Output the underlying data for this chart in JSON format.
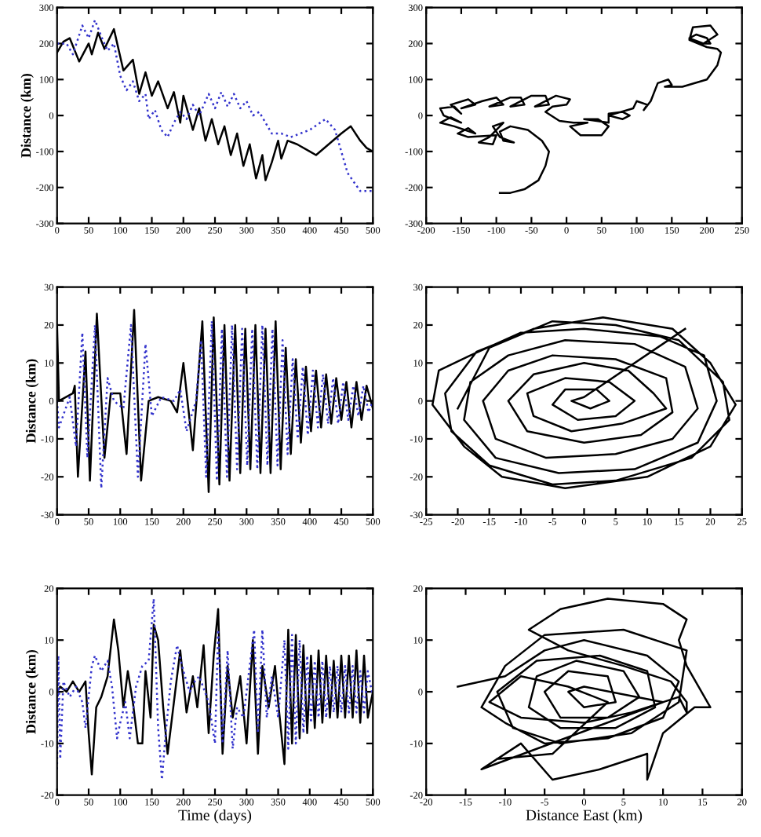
{
  "chart_data": [
    {
      "type": "line",
      "ylabel": "Distance (km)",
      "xlim": [
        0,
        500
      ],
      "ylim": [
        -300,
        300
      ],
      "xticks": [
        0,
        50,
        100,
        150,
        200,
        250,
        300,
        350,
        400,
        450,
        500
      ],
      "yticks": [
        -300,
        -200,
        -100,
        0,
        100,
        200,
        300
      ],
      "grid": false,
      "series": [
        {
          "color": "#000000",
          "line_style": "solid",
          "x": [
            0,
            10,
            20,
            35,
            50,
            55,
            65,
            75,
            90,
            105,
            120,
            130,
            140,
            150,
            160,
            175,
            185,
            195,
            200,
            215,
            225,
            235,
            245,
            255,
            265,
            275,
            285,
            295,
            305,
            315,
            325,
            330,
            340,
            350,
            355,
            365,
            380,
            400,
            410,
            430,
            450,
            465,
            480,
            490,
            500
          ],
          "values": [
            175,
            205,
            215,
            150,
            200,
            170,
            230,
            185,
            240,
            125,
            155,
            60,
            120,
            55,
            95,
            20,
            65,
            -20,
            55,
            -40,
            20,
            -70,
            -10,
            -80,
            -30,
            -110,
            -50,
            -140,
            -80,
            -175,
            -110,
            -180,
            -130,
            -70,
            -120,
            -70,
            -80,
            -100,
            -110,
            -80,
            -50,
            -30,
            -70,
            -90,
            -100
          ]
        },
        {
          "color": "#3333cc",
          "line_style": "dotted",
          "x": [
            0,
            15,
            25,
            40,
            50,
            60,
            70,
            80,
            90,
            100,
            110,
            120,
            130,
            140,
            145,
            155,
            165,
            175,
            185,
            195,
            205,
            215,
            225,
            240,
            250,
            260,
            270,
            280,
            290,
            300,
            310,
            320,
            340,
            355,
            370,
            385,
            400,
            425,
            440,
            450,
            460,
            480,
            500
          ],
          "values": [
            200,
            200,
            170,
            250,
            215,
            265,
            220,
            180,
            200,
            110,
            70,
            95,
            40,
            60,
            -10,
            15,
            -40,
            -60,
            -20,
            10,
            -10,
            30,
            0,
            60,
            20,
            65,
            25,
            60,
            20,
            40,
            0,
            10,
            -50,
            -50,
            -60,
            -50,
            -40,
            -10,
            -40,
            -100,
            -160,
            -210,
            -210
          ]
        }
      ]
    },
    {
      "type": "line",
      "xlim": [
        -200,
        250
      ],
      "ylim": [
        -300,
        300
      ],
      "xticks": [
        -200,
        -150,
        -100,
        -50,
        0,
        50,
        100,
        150,
        200,
        250
      ],
      "yticks": [
        -300,
        -200,
        -100,
        0,
        100,
        200,
        300
      ],
      "grid": false,
      "series": [
        {
          "color": "#000000",
          "line_style": "solid",
          "x": [
            -95,
            -80,
            -60,
            -40,
            -30,
            -25,
            -35,
            -55,
            -80,
            -95,
            -90,
            -75,
            -95,
            -105,
            -90,
            -110,
            -125,
            -105,
            -100,
            -140,
            -155,
            -140,
            -130,
            -160,
            -180,
            -165,
            -150,
            -175,
            -180,
            -160,
            -150,
            -165,
            -140,
            -130,
            -150,
            -120,
            -100,
            -90,
            -110,
            -80,
            -65,
            -60,
            -80,
            -50,
            -30,
            -25,
            -45,
            -15,
            5,
            0,
            -20,
            -30,
            -10,
            10,
            30,
            5,
            20,
            50,
            60,
            45,
            25,
            60,
            60,
            80,
            90,
            80,
            60,
            95,
            100,
            115,
            110,
            120,
            130,
            145,
            150,
            140,
            165,
            200,
            215,
            220,
            215,
            200,
            175,
            180,
            205,
            215,
            195,
            175,
            185,
            200,
            205,
            190
          ],
          "values": [
            -215,
            -215,
            -205,
            -180,
            -140,
            -100,
            -70,
            -40,
            -30,
            -45,
            -70,
            -75,
            -60,
            -30,
            -20,
            -60,
            -75,
            -80,
            -55,
            -60,
            -50,
            -35,
            -50,
            -30,
            -20,
            -5,
            -20,
            0,
            20,
            25,
            5,
            30,
            45,
            30,
            20,
            40,
            50,
            30,
            25,
            50,
            50,
            30,
            25,
            55,
            55,
            30,
            25,
            55,
            45,
            30,
            25,
            10,
            -15,
            -20,
            -20,
            -30,
            -55,
            -55,
            -30,
            -10,
            -10,
            -20,
            5,
            10,
            0,
            -10,
            0,
            20,
            40,
            30,
            15,
            40,
            90,
            100,
            85,
            80,
            80,
            100,
            140,
            175,
            185,
            190,
            210,
            245,
            250,
            225,
            200,
            215,
            225,
            215,
            200,
            200
          ]
        }
      ]
    },
    {
      "type": "line",
      "ylabel": "Distance (km)",
      "xlim": [
        0,
        500
      ],
      "ylim": [
        -30,
        30
      ],
      "xticks": [
        0,
        50,
        100,
        150,
        200,
        250,
        300,
        350,
        400,
        450,
        500
      ],
      "yticks": [
        -30,
        -20,
        -10,
        0,
        10,
        20,
        30
      ],
      "grid": false,
      "series": [
        {
          "color": "#000000",
          "line_style": "solid",
          "x": [
            0,
            3,
            25,
            28,
            33,
            45,
            52,
            63,
            75,
            85,
            100,
            110,
            122,
            133,
            145,
            160,
            180,
            190,
            200,
            215,
            230,
            240,
            248,
            257,
            265,
            273,
            282,
            290,
            298,
            306,
            314,
            322,
            330,
            338,
            346,
            354,
            362,
            370,
            378,
            386,
            394,
            402,
            410,
            418,
            426,
            434,
            442,
            450,
            458,
            466,
            474,
            482,
            490,
            500
          ],
          "values": [
            20,
            0,
            2,
            4,
            -20,
            13,
            -21,
            23,
            -15,
            2,
            2,
            -14,
            24,
            -21,
            0,
            1,
            0,
            -3,
            10,
            -13,
            21,
            -24,
            22,
            -22,
            20,
            -21,
            20,
            -19,
            19,
            -18,
            20,
            -19,
            19,
            -19,
            21,
            -18,
            14,
            -14,
            11,
            -11,
            9,
            -8,
            8,
            -7,
            7,
            -6,
            6,
            -5,
            5,
            -7,
            5,
            -5,
            4,
            -2
          ]
        },
        {
          "color": "#3333cc",
          "line_style": "dotted",
          "x": [
            0,
            3,
            20,
            30,
            40,
            48,
            60,
            70,
            80,
            90,
            105,
            117,
            128,
            140,
            150,
            165,
            185,
            195,
            205,
            220,
            228,
            236,
            245,
            253,
            261,
            269,
            277,
            285,
            293,
            301,
            309,
            317,
            325,
            333,
            341,
            349,
            357,
            365,
            373,
            381,
            389,
            397,
            405,
            413,
            421,
            429,
            437,
            445,
            453,
            461,
            469,
            477,
            485,
            493,
            500
          ],
          "values": [
            0,
            -7,
            1,
            -12,
            18,
            -15,
            20,
            -23,
            6,
            0,
            -2,
            20,
            -20,
            15,
            -4,
            1,
            0,
            3,
            -8,
            0,
            16,
            -20,
            21,
            -21,
            19,
            -20,
            20,
            -18,
            19,
            -17,
            19,
            -18,
            20,
            -17,
            19,
            -17,
            16,
            -14,
            11,
            -10,
            9,
            -9,
            8,
            -7,
            7,
            -6,
            6,
            -6,
            5,
            -5,
            4,
            -4,
            4,
            -3,
            0
          ]
        }
      ]
    },
    {
      "type": "line",
      "xlim": [
        -25,
        25
      ],
      "ylim": [
        -30,
        30
      ],
      "xticks": [
        -25,
        -20,
        -15,
        -10,
        -5,
        0,
        5,
        10,
        15,
        20,
        25
      ],
      "yticks": [
        -30,
        -20,
        -10,
        0,
        10,
        20,
        30
      ],
      "grid": false,
      "series": [
        {
          "color": "#000000",
          "line_style": "solid",
          "x": [
            -20,
            -15,
            -5,
            5,
            15,
            22,
            23,
            17,
            5,
            -5,
            -15,
            -21,
            -22,
            -17,
            -8,
            3,
            14,
            20,
            24,
            20,
            10,
            -3,
            -13,
            -19,
            -24,
            -23,
            -18,
            -10,
            0,
            12,
            19,
            21,
            18,
            8,
            -4,
            -14,
            -19,
            -18,
            -12,
            -3,
            8,
            16,
            18,
            14,
            5,
            -6,
            -14,
            -16,
            -12,
            -5,
            5,
            13,
            14,
            9,
            0,
            -9,
            -12,
            -8,
            0,
            7,
            11,
            13,
            6,
            -2,
            -8,
            -9,
            -3,
            4,
            8,
            5,
            -1,
            -5,
            -3,
            2,
            4,
            1,
            -2,
            0,
            16
          ],
          "values": [
            -2,
            14,
            21,
            20,
            16,
            5,
            -5,
            -15,
            -21,
            -22,
            -17,
            -8,
            2,
            13,
            19,
            22,
            19,
            10,
            -1,
            -12,
            -20,
            -23,
            -20,
            -12,
            -1,
            8,
            12,
            18,
            19,
            17,
            12,
            0,
            -11,
            -18,
            -19,
            -15,
            -5,
            5,
            12,
            16,
            15,
            9,
            -2,
            -10,
            -14,
            -15,
            -10,
            0,
            8,
            12,
            11,
            6,
            -3,
            -9,
            -11,
            -8,
            0,
            7,
            10,
            8,
            2,
            -2,
            -6,
            -8,
            -4,
            2,
            6,
            5,
            0,
            -4,
            -5,
            -1,
            3,
            3,
            0,
            -2,
            0,
            1,
            19
          ]
        }
      ]
    },
    {
      "type": "line",
      "ylabel": "Distance (km)",
      "xlabel": "Time (days)",
      "xlim": [
        0,
        500
      ],
      "ylim": [
        -20,
        20
      ],
      "xticks": [
        0,
        50,
        100,
        150,
        200,
        250,
        300,
        350,
        400,
        450,
        500
      ],
      "yticks": [
        -20,
        -10,
        0,
        10,
        20
      ],
      "grid": false,
      "series": [
        {
          "color": "#000000",
          "line_style": "solid",
          "x": [
            0,
            5,
            15,
            25,
            35,
            45,
            50,
            55,
            62,
            70,
            80,
            90,
            97,
            105,
            112,
            120,
            128,
            135,
            140,
            148,
            153,
            160,
            168,
            175,
            185,
            195,
            205,
            215,
            222,
            232,
            240,
            248,
            255,
            262,
            270,
            278,
            290,
            300,
            310,
            318,
            325,
            335,
            345,
            350,
            360,
            366,
            372,
            378,
            384,
            390,
            396,
            402,
            408,
            414,
            420,
            426,
            432,
            438,
            444,
            450,
            456,
            462,
            468,
            474,
            480,
            486,
            492,
            500
          ],
          "values": [
            0,
            1,
            0,
            2,
            0,
            2,
            -8,
            -16,
            -3,
            -1,
            3,
            14,
            8,
            -3,
            4,
            -2,
            -10,
            -10,
            4,
            -5,
            13,
            10,
            -3,
            -12,
            -2,
            8,
            -4,
            3,
            -3,
            9,
            -8,
            7,
            16,
            -12,
            5,
            -5,
            3,
            -10,
            10,
            -12,
            5,
            -3,
            5,
            -2,
            -14,
            12,
            -10,
            11,
            -9,
            9,
            -8,
            7,
            -7,
            8,
            -6,
            7,
            -5,
            6,
            -5,
            7,
            -5,
            7,
            -5,
            8,
            -6,
            7,
            -5,
            0
          ]
        },
        {
          "color": "#3333cc",
          "line_style": "dotted",
          "x": [
            0,
            2,
            5,
            10,
            20,
            30,
            40,
            45,
            55,
            60,
            70,
            80,
            87,
            95,
            100,
            108,
            115,
            125,
            135,
            145,
            153,
            160,
            166,
            172,
            180,
            190,
            200,
            210,
            218,
            225,
            240,
            250,
            255,
            262,
            270,
            278,
            285,
            295,
            305,
            312,
            318,
            325,
            332,
            340,
            350,
            360,
            366,
            372,
            378,
            384,
            390,
            396,
            402,
            408,
            414,
            420,
            426,
            432,
            438,
            444,
            450,
            456,
            462,
            468,
            474,
            480,
            486,
            492,
            500
          ],
          "values": [
            -15,
            7,
            -13,
            2,
            -1,
            1,
            -2,
            -7,
            5,
            7,
            4,
            6,
            1,
            -9,
            -6,
            -2,
            -9,
            1,
            5,
            6,
            18,
            -7,
            -17,
            -8,
            2,
            9,
            4,
            0,
            2,
            3,
            -2,
            -10,
            12,
            -10,
            8,
            -11,
            -3,
            -5,
            5,
            12,
            -8,
            12,
            -5,
            3,
            -5,
            10,
            -11,
            11,
            -10,
            10,
            -8,
            7,
            -6,
            6,
            -5,
            6,
            -5,
            5,
            -4,
            5,
            -4,
            5,
            -4,
            5,
            -4,
            4,
            -4,
            4,
            -1
          ]
        }
      ]
    },
    {
      "type": "line",
      "xlabel": "Distance East (km)",
      "xlim": [
        -20,
        20
      ],
      "ylim": [
        -20,
        20
      ],
      "xticks": [
        -20,
        -15,
        -10,
        -5,
        0,
        5,
        10,
        15,
        20
      ],
      "yticks": [
        -20,
        -10,
        0,
        10,
        20
      ],
      "grid": false,
      "series": [
        {
          "color": "#000000",
          "line_style": "solid",
          "x": [
            -16,
            -10,
            -5,
            0,
            8,
            12,
            10,
            3,
            -5,
            -10,
            -13,
            -10,
            -5,
            5,
            13,
            12,
            6,
            -3,
            -9,
            -11,
            -6,
            2,
            8,
            9,
            4,
            -3,
            -7,
            -6,
            -1,
            5,
            7,
            3,
            -3,
            -5,
            -2,
            3,
            4,
            0,
            -2,
            0,
            10,
            -13,
            -8,
            -4,
            2,
            8,
            8,
            10,
            14,
            16,
            13,
            12,
            13,
            10,
            3,
            -3,
            -7,
            -2,
            5,
            11,
            13,
            13,
            12,
            6,
            0,
            -8,
            -12,
            -8,
            -2,
            3,
            -4,
            -11
          ],
          "values": [
            1,
            3,
            8,
            10,
            7,
            2,
            -5,
            -9,
            -10,
            -6,
            -3,
            5,
            11,
            12,
            8,
            -2,
            -8,
            -10,
            -7,
            0,
            6,
            7,
            4,
            -3,
            -7,
            -7,
            -3,
            3,
            6,
            4,
            -1,
            -5,
            -5,
            0,
            4,
            3,
            -2,
            -3,
            0,
            1,
            -2,
            -15,
            -10,
            -17,
            -15,
            -12,
            -17,
            -8,
            -3,
            -3,
            5,
            10,
            14,
            17,
            18,
            16,
            12,
            8,
            5,
            2,
            -2,
            -4,
            -1,
            -4,
            -6,
            -5,
            -2,
            3,
            1,
            -2,
            -12,
            -13
          ]
        }
      ]
    }
  ]
}
